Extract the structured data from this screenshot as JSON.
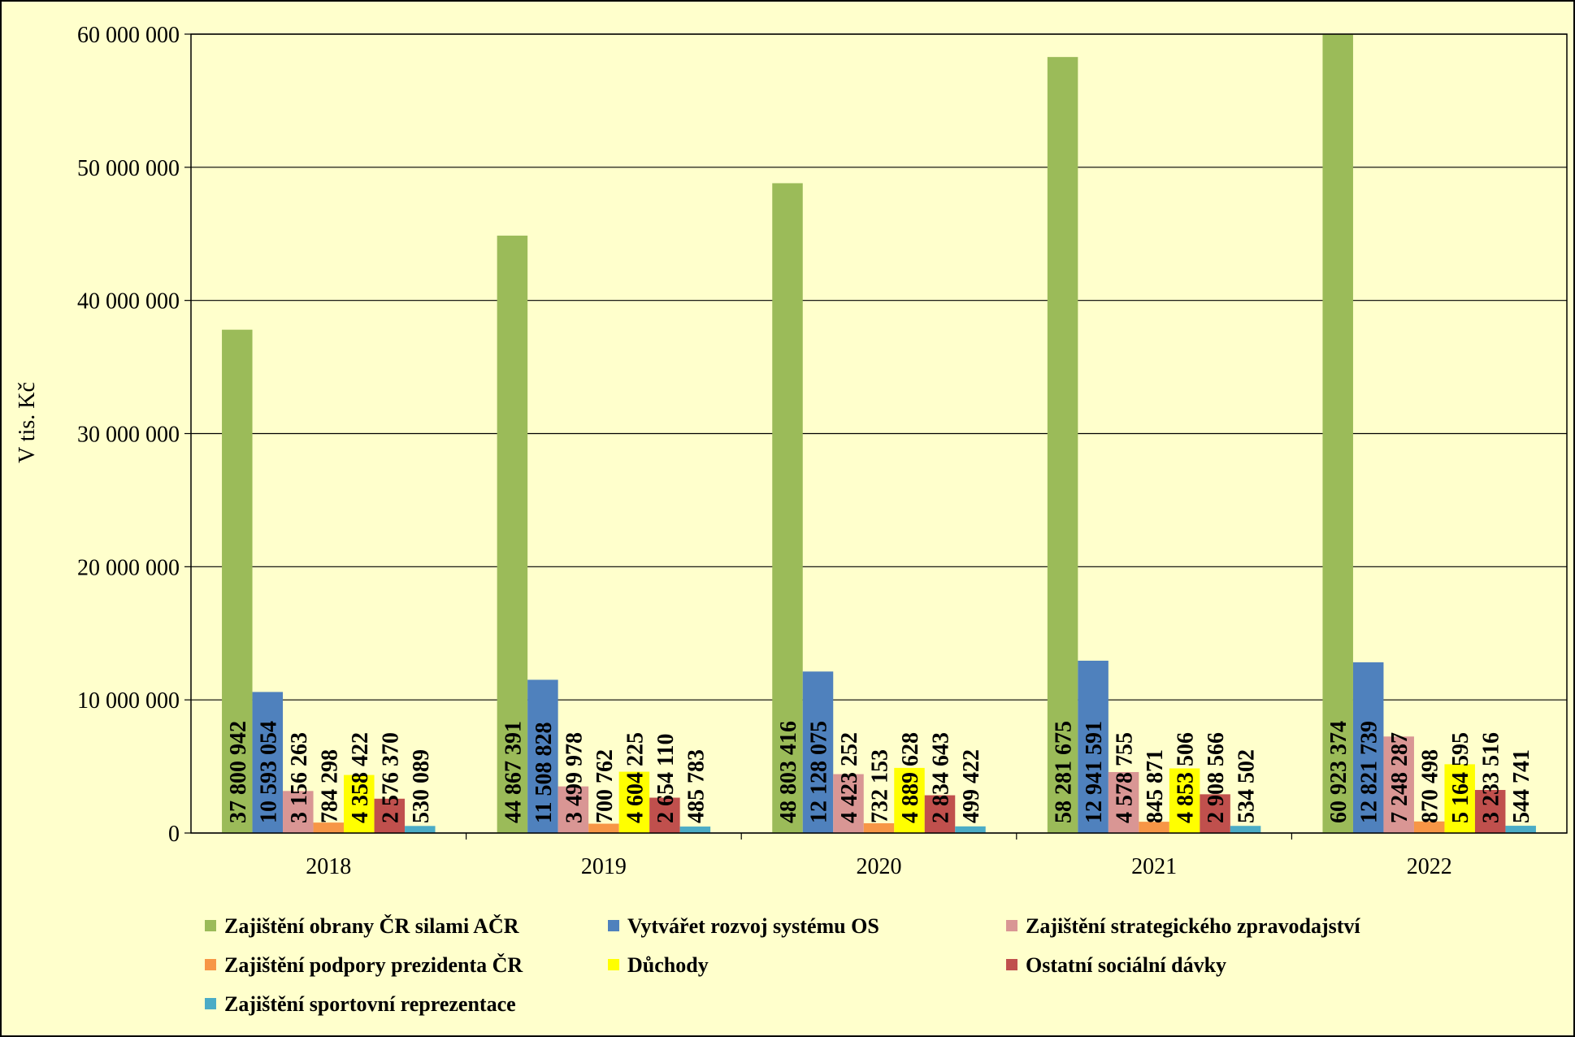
{
  "colors": {
    "background": "#FFFFCC",
    "plot_background": "#FFFFCC",
    "border": "#000000",
    "gridline": "#000000"
  },
  "chart_data": {
    "type": "bar",
    "title": "",
    "xlabel": "",
    "ylabel": "V tis. Kč",
    "ylim": [
      0,
      60000000
    ],
    "yticks": [
      0,
      10000000,
      20000000,
      30000000,
      40000000,
      50000000,
      60000000
    ],
    "ytick_labels": [
      "0",
      "10 000 000",
      "20 000 000",
      "30 000 000",
      "40 000 000",
      "50 000 000",
      "60 000 000"
    ],
    "grid": true,
    "legend_position": "bottom",
    "categories": [
      "2018",
      "2019",
      "2020",
      "2021",
      "2022"
    ],
    "series": [
      {
        "name": "Zajištění obrany ČR silami AČR",
        "color": "#9BBB59",
        "values": [
          37800942,
          44867391,
          48803416,
          58281675,
          60923374
        ],
        "labels": [
          "37 800 942",
          "44 867 391",
          "48 803 416",
          "58 281 675",
          "60 923 374"
        ]
      },
      {
        "name": "Vytvářet rozvoj systému OS",
        "color": "#4F81BD",
        "values": [
          10593054,
          11508828,
          12128075,
          12941591,
          12821739
        ],
        "labels": [
          "10 593 054",
          "11 508 828",
          "12 128 075",
          "12 941 591",
          "12 821 739"
        ]
      },
      {
        "name": "Zajištění strategického zpravodajství",
        "color": "#D99694",
        "values": [
          3156263,
          3499978,
          4423252,
          4578755,
          7248287
        ],
        "labels": [
          "3 156 263",
          "3 499 978",
          "4 423 252",
          "4 578 755",
          "7 248 287"
        ]
      },
      {
        "name": "Zajištění podpory prezidenta ČR",
        "color": "#F79646",
        "values": [
          784298,
          700762,
          732153,
          845871,
          870498
        ],
        "labels": [
          "784 298",
          "700 762",
          "732 153",
          "845 871",
          "870 498"
        ]
      },
      {
        "name": "Důchody",
        "color": "#FFFF00",
        "values": [
          4358422,
          4604225,
          4889628,
          4853506,
          5164595
        ],
        "labels": [
          "4 358 422",
          "4 604 225",
          "4 889 628",
          "4 853 506",
          "5 164 595"
        ]
      },
      {
        "name": "Ostatní sociální dávky",
        "color": "#C0504D",
        "values": [
          2576370,
          2654110,
          2834643,
          2908566,
          3233516
        ],
        "labels": [
          "2 576 370",
          "2 654 110",
          "2 834 643",
          "2 908 566",
          "3 233 516"
        ]
      },
      {
        "name": "Zajištění sportovní reprezentace",
        "color": "#4BACC6",
        "values": [
          530089,
          485783,
          499422,
          534502,
          544741
        ],
        "labels": [
          "530 089",
          "485 783",
          "499 422",
          "534 502",
          "544 741"
        ]
      }
    ]
  }
}
